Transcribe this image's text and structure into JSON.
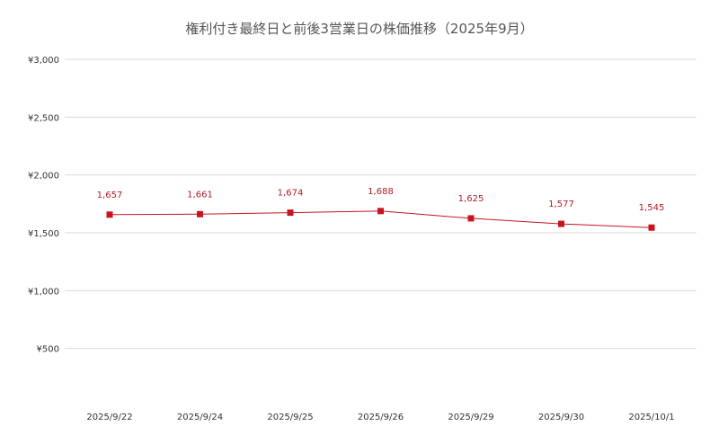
{
  "chart_data": {
    "type": "line",
    "title": "権利付き最終日と前後3営業日の株価推移（2025年9月）",
    "xlabel": "",
    "ylabel": "",
    "categories": [
      "2025/9/22",
      "2025/9/24",
      "2025/9/25",
      "2025/9/26",
      "2025/9/29",
      "2025/9/30",
      "2025/10/1"
    ],
    "series": [
      {
        "values": [
          1657,
          1661,
          1674,
          1688,
          1625,
          1577,
          1545
        ],
        "labels": [
          "1,657",
          "1,661",
          "1,674",
          "1,688",
          "1,625",
          "1,577",
          "1,545"
        ],
        "color": "#c8141e"
      }
    ],
    "ylim": [
      0,
      3000
    ],
    "yticks": [
      500,
      1000,
      1500,
      2000,
      2500,
      3000
    ],
    "ytick_labels": [
      "¥500",
      "¥1,000",
      "¥1,500",
      "¥2,000",
      "¥2,500",
      "¥3,000"
    ],
    "grid": true,
    "legend": "none"
  }
}
